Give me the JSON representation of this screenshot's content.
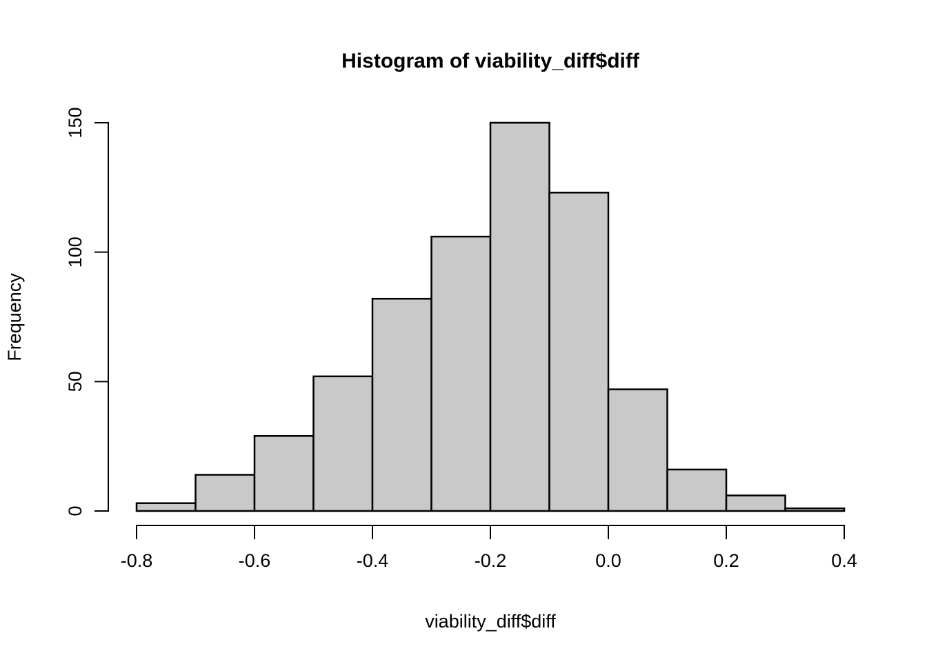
{
  "chart_data": {
    "type": "bar",
    "subtype": "histogram",
    "title": "Histogram of viability_diff$diff",
    "xlabel": "viability_diff$diff",
    "ylabel": "Frequency",
    "bin_breaks": [
      -0.8,
      -0.7,
      -0.6,
      -0.5,
      -0.4,
      -0.3,
      -0.2,
      -0.1,
      0.0,
      0.1,
      0.2,
      0.3,
      0.4
    ],
    "counts": [
      3,
      14,
      29,
      52,
      82,
      106,
      150,
      123,
      47,
      16,
      6,
      1
    ],
    "x_ticks": [
      -0.8,
      -0.6,
      -0.4,
      -0.2,
      0.0,
      0.2,
      0.4
    ],
    "x_tick_labels": [
      "-0.8",
      "-0.6",
      "-0.4",
      "-0.2",
      "0.0",
      "0.2",
      "0.4"
    ],
    "y_ticks": [
      0,
      50,
      100,
      150
    ],
    "y_tick_labels": [
      "0",
      "50",
      "100",
      "150"
    ],
    "xlim": [
      -0.8,
      0.4
    ],
    "ylim": [
      0,
      150
    ],
    "grid": false,
    "legend_position": "none",
    "colors": {
      "bar_fill": "#c9c9c9",
      "bar_stroke": "#000000",
      "axis": "#000000",
      "text": "#000000",
      "background": "#ffffff"
    }
  }
}
